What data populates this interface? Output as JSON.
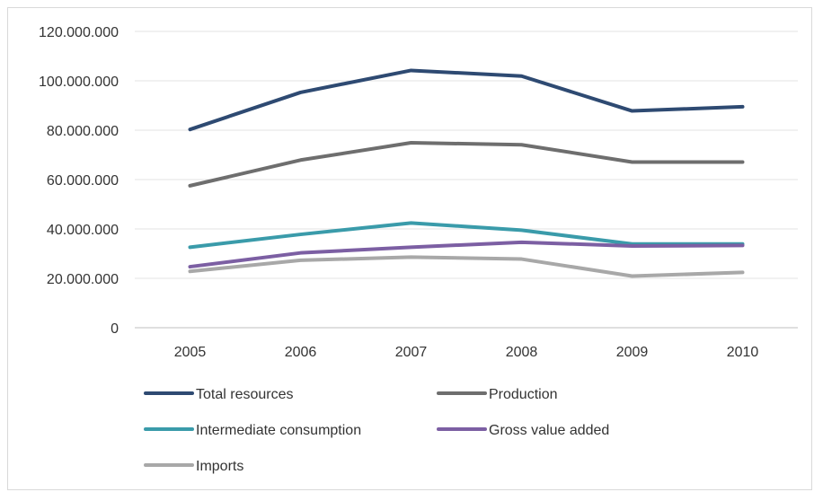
{
  "chart_data": {
    "type": "line",
    "title": "",
    "xlabel": "",
    "ylabel": "",
    "categories": [
      "2005",
      "2006",
      "2007",
      "2008",
      "2009",
      "2010"
    ],
    "ylim": [
      0,
      120000000
    ],
    "yticks": [
      0,
      20000000,
      40000000,
      60000000,
      80000000,
      100000000,
      120000000
    ],
    "ytick_labels": [
      "0",
      "20.000.000",
      "40.000.000",
      "60.000.000",
      "80.000.000",
      "100.000.000",
      "120.000.000"
    ],
    "grid": true,
    "legend_position": "bottom",
    "series": [
      {
        "name": "Total resources",
        "color": "#2E4A72",
        "values": [
          80300000,
          95300000,
          104200000,
          101900000,
          87800000,
          89500000
        ]
      },
      {
        "name": "Production",
        "color": "#6E6E6E",
        "values": [
          57500000,
          67900000,
          74900000,
          74100000,
          67100000,
          67100000
        ]
      },
      {
        "name": "Intermediate consumption",
        "color": "#3A9BAA",
        "values": [
          32600000,
          37800000,
          42400000,
          39500000,
          33900000,
          33900000
        ]
      },
      {
        "name": "Gross value added",
        "color": "#7C5FA3",
        "values": [
          24700000,
          30300000,
          32600000,
          34600000,
          33100000,
          33300000
        ]
      },
      {
        "name": "Imports",
        "color": "#A8A8A8",
        "values": [
          22800000,
          27300000,
          28600000,
          27800000,
          20900000,
          22400000
        ]
      }
    ]
  }
}
